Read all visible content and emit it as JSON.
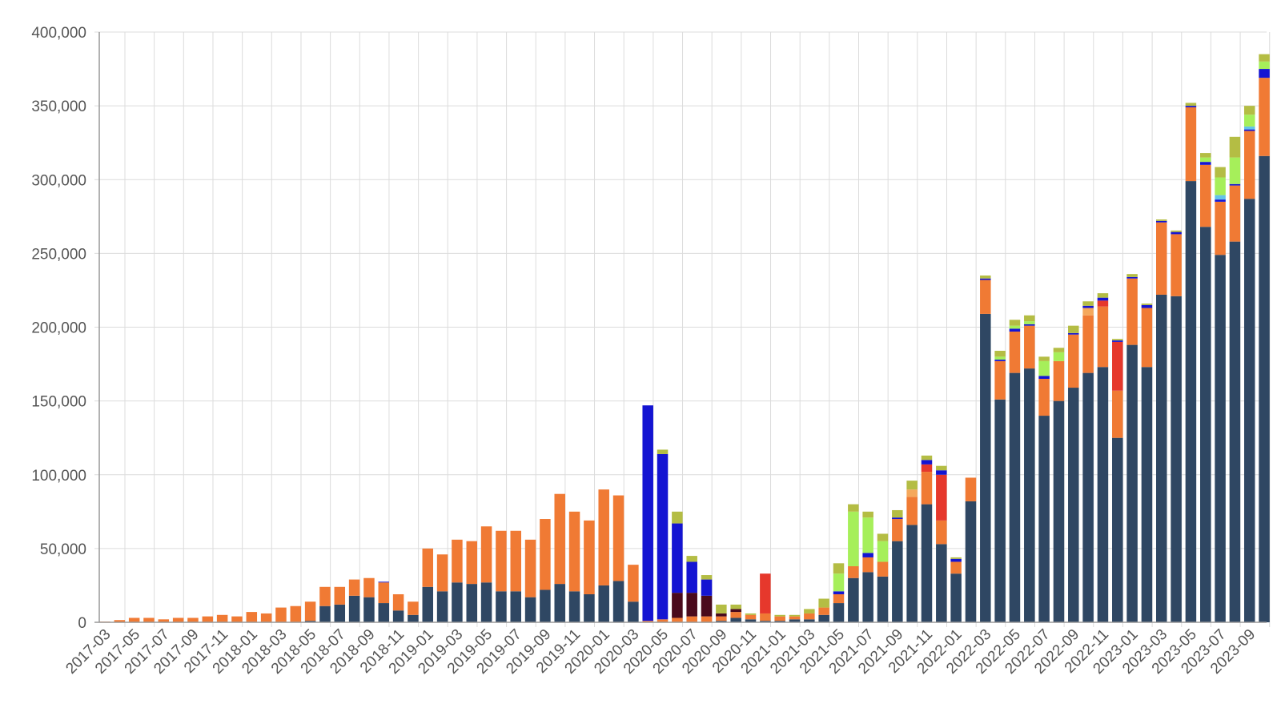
{
  "chart_data": {
    "type": "bar",
    "stacked": true,
    "title": "",
    "xlabel": "",
    "ylabel": "",
    "ylim": [
      0,
      400000
    ],
    "y_ticks": [
      0,
      50000,
      100000,
      150000,
      200000,
      250000,
      300000,
      350000,
      400000
    ],
    "y_tick_labels": [
      "0",
      "50,000",
      "100,000",
      "150,000",
      "200,000",
      "250,000",
      "300,000",
      "350,000",
      "400,000"
    ],
    "grid": true,
    "legend": "none",
    "categories": [
      "2017-03",
      "2017-04",
      "2017-05",
      "2017-06",
      "2017-07",
      "2017-08",
      "2017-09",
      "2017-10",
      "2017-11",
      "2017-12",
      "2018-01",
      "2018-02",
      "2018-03",
      "2018-04",
      "2018-05",
      "2018-06",
      "2018-07",
      "2018-08",
      "2018-09",
      "2018-10",
      "2018-11",
      "2018-12",
      "2019-01",
      "2019-02",
      "2019-03",
      "2019-04",
      "2019-05",
      "2019-06",
      "2019-07",
      "2019-08",
      "2019-09",
      "2019-10",
      "2019-11",
      "2019-12",
      "2020-01",
      "2020-02",
      "2020-03",
      "2020-04",
      "2020-05",
      "2020-06",
      "2020-07",
      "2020-08",
      "2020-09",
      "2020-10",
      "2020-11",
      "2020-12",
      "2021-01",
      "2021-02",
      "2021-03",
      "2021-04",
      "2021-05",
      "2021-06",
      "2021-07",
      "2021-08",
      "2021-09",
      "2021-10",
      "2021-11",
      "2021-12",
      "2022-01",
      "2022-02",
      "2022-03",
      "2022-04",
      "2022-05",
      "2022-06",
      "2022-07",
      "2022-08",
      "2022-09",
      "2022-10",
      "2022-11",
      "2022-12",
      "2023-01",
      "2023-02",
      "2023-03",
      "2023-04",
      "2023-05",
      "2023-06",
      "2023-07",
      "2023-08",
      "2023-09",
      "2023-10"
    ],
    "x_tick_labels": [
      "2017-03",
      "2017-05",
      "2017-07",
      "2017-09",
      "2017-11",
      "2018-01",
      "2018-03",
      "2018-05",
      "2018-07",
      "2018-09",
      "2018-11",
      "2019-01",
      "2019-03",
      "2019-05",
      "2019-07",
      "2019-09",
      "2019-11",
      "2020-01",
      "2020-03",
      "2020-05",
      "2020-07",
      "2020-09",
      "2020-11",
      "2021-01",
      "2021-03",
      "2021-05",
      "2021-07",
      "2021-09",
      "2021-11",
      "2022-01",
      "2022-03",
      "2022-05",
      "2022-07",
      "2022-09",
      "2022-11",
      "2023-01",
      "2023-03",
      "2023-05",
      "2023-07",
      "2023-09"
    ],
    "series": [
      {
        "color": "#2f4763",
        "values": [
          0,
          0,
          0,
          0,
          0,
          0,
          0,
          0,
          0,
          0,
          0,
          0,
          0,
          0,
          1000,
          11000,
          12000,
          18000,
          17000,
          13000,
          8000,
          5000,
          24000,
          21000,
          27000,
          26000,
          27000,
          21000,
          21000,
          17000,
          22000,
          26000,
          21000,
          19000,
          25000,
          28000,
          14000,
          0,
          0,
          0,
          0,
          0,
          1000,
          3000,
          2000,
          1000,
          1000,
          2000,
          2000,
          5000,
          13000,
          30000,
          34000,
          31000,
          55000,
          66000,
          80000,
          53000,
          33000,
          82000,
          209000,
          151000,
          169000,
          172000,
          140000,
          150000,
          159000,
          169000,
          173000,
          125000,
          188000,
          173000,
          222000,
          221000,
          299000,
          268000,
          249000,
          258000,
          287000,
          316000
        ]
      },
      {
        "color": "#f07a34",
        "values": [
          500,
          1500,
          3000,
          3000,
          2000,
          3000,
          3000,
          4000,
          5000,
          4000,
          7000,
          6000,
          10000,
          11000,
          13000,
          13000,
          12000,
          11000,
          13000,
          14000,
          11000,
          9000,
          26000,
          25000,
          29000,
          29000,
          38000,
          41000,
          41000,
          39000,
          48000,
          61000,
          54000,
          50000,
          65000,
          58000,
          25000,
          1000,
          2000,
          3000,
          4000,
          4000,
          3000,
          4000,
          3000,
          5000,
          3000,
          2000,
          4000,
          5000,
          6000,
          8000,
          10000,
          10000,
          15000,
          19000,
          22000,
          16000,
          8000,
          16000,
          23000,
          26000,
          28000,
          29000,
          25000,
          27000,
          36000,
          39000,
          41000,
          32000,
          45000,
          40000,
          49000,
          42000,
          50000,
          42000,
          36000,
          38000,
          46000,
          53000
        ]
      },
      {
        "color": "#f5a85c",
        "values": [
          0,
          0,
          0,
          0,
          0,
          0,
          0,
          0,
          0,
          0,
          0,
          0,
          0,
          0,
          0,
          0,
          0,
          0,
          0,
          0,
          0,
          0,
          0,
          0,
          0,
          0,
          0,
          0,
          0,
          0,
          0,
          0,
          0,
          0,
          0,
          0,
          0,
          0,
          0,
          0,
          0,
          0,
          0,
          0,
          0,
          0,
          0,
          0,
          0,
          0,
          0,
          0,
          0,
          0,
          0,
          5000,
          0,
          0,
          0,
          0,
          0,
          0,
          0,
          0,
          0,
          0,
          0,
          5000,
          0,
          0,
          0,
          0,
          0,
          0,
          0,
          0,
          0,
          0,
          0,
          0
        ]
      },
      {
        "color": "#e6382c",
        "values": [
          0,
          0,
          0,
          0,
          0,
          0,
          0,
          0,
          0,
          0,
          0,
          0,
          0,
          0,
          0,
          0,
          0,
          0,
          0,
          0,
          0,
          0,
          0,
          0,
          0,
          0,
          0,
          0,
          0,
          0,
          0,
          0,
          0,
          0,
          0,
          0,
          0,
          0,
          0,
          0,
          0,
          0,
          0,
          0,
          0,
          27000,
          0,
          0,
          0,
          0,
          0,
          0,
          0,
          0,
          0,
          0,
          5000,
          31000,
          0,
          0,
          0,
          0,
          0,
          0,
          0,
          0,
          0,
          0,
          4000,
          33000,
          0,
          0,
          0,
          0,
          0,
          0,
          0,
          0,
          0,
          0
        ]
      },
      {
        "color": "#4a0a1c",
        "values": [
          0,
          0,
          0,
          0,
          0,
          0,
          0,
          0,
          0,
          0,
          0,
          0,
          0,
          0,
          0,
          0,
          0,
          0,
          0,
          0,
          0,
          0,
          0,
          0,
          0,
          0,
          0,
          0,
          0,
          0,
          0,
          0,
          0,
          0,
          0,
          0,
          0,
          0,
          0,
          17000,
          16000,
          14000,
          2000,
          2000,
          0,
          0,
          0,
          0,
          0,
          0,
          0,
          0,
          0,
          0,
          0,
          0,
          0,
          0,
          0,
          0,
          0,
          0,
          0,
          0,
          0,
          0,
          0,
          0,
          0,
          0,
          0,
          0,
          0,
          0,
          0,
          0,
          0,
          0,
          0,
          0
        ]
      },
      {
        "color": "#1414d2",
        "values": [
          0,
          0,
          0,
          0,
          0,
          0,
          0,
          0,
          0,
          0,
          0,
          0,
          0,
          0,
          0,
          0,
          0,
          0,
          0,
          500,
          0,
          0,
          0,
          0,
          0,
          0,
          0,
          0,
          0,
          0,
          0,
          0,
          0,
          0,
          0,
          0,
          0,
          146000,
          112000,
          47000,
          21000,
          11000,
          0,
          0,
          0,
          0,
          0,
          0,
          0,
          0,
          2000,
          0,
          3000,
          0,
          1000,
          0,
          3000,
          3000,
          2000,
          0,
          1000,
          1000,
          2000,
          1000,
          2000,
          0,
          1000,
          1500,
          2000,
          1000,
          1000,
          2000,
          1000,
          1500,
          1000,
          2000,
          1500,
          1000,
          1000,
          6000
        ]
      },
      {
        "color": "#63c3e8",
        "values": [
          0,
          0,
          0,
          0,
          0,
          0,
          0,
          0,
          0,
          0,
          0,
          0,
          0,
          0,
          0,
          0,
          0,
          0,
          0,
          0,
          0,
          0,
          0,
          0,
          0,
          0,
          0,
          0,
          0,
          0,
          0,
          0,
          0,
          0,
          0,
          0,
          0,
          0,
          0,
          0,
          0,
          0,
          0,
          0,
          0,
          0,
          0,
          0,
          0,
          0,
          0,
          0,
          0,
          0,
          0,
          0,
          0,
          0,
          0,
          0,
          0,
          0,
          0,
          0,
          0,
          0,
          0,
          0,
          0,
          0,
          0,
          0,
          0,
          0,
          0,
          0,
          3000,
          0,
          2000,
          0
        ]
      },
      {
        "color": "#a6ef5a",
        "values": [
          0,
          0,
          0,
          0,
          0,
          0,
          0,
          0,
          0,
          0,
          0,
          0,
          0,
          0,
          0,
          0,
          0,
          0,
          0,
          0,
          0,
          0,
          0,
          0,
          0,
          0,
          0,
          0,
          0,
          0,
          0,
          0,
          0,
          0,
          0,
          0,
          0,
          0,
          0,
          0,
          0,
          0,
          0,
          0,
          0,
          0,
          0,
          0,
          0,
          0,
          12000,
          37000,
          24000,
          14000,
          0,
          0,
          0,
          0,
          0,
          0,
          0,
          2000,
          2000,
          2000,
          10000,
          6000,
          0,
          0,
          0,
          0,
          0,
          0,
          0,
          0,
          0,
          3000,
          12000,
          18000,
          8000,
          5000
        ]
      },
      {
        "color": "#b4bd44",
        "values": [
          0,
          0,
          0,
          0,
          0,
          0,
          0,
          0,
          0,
          0,
          0,
          0,
          0,
          0,
          0,
          0,
          0,
          0,
          0,
          0,
          0,
          0,
          0,
          0,
          0,
          0,
          0,
          0,
          0,
          0,
          0,
          0,
          0,
          0,
          0,
          0,
          0,
          0,
          3000,
          8000,
          4000,
          3000,
          6000,
          3000,
          1000,
          0,
          1000,
          1000,
          3000,
          6000,
          7000,
          5000,
          4000,
          5000,
          5000,
          6000,
          3000,
          3000,
          1000,
          0,
          2000,
          4000,
          4000,
          4000,
          3000,
          3000,
          5000,
          3000,
          3000,
          1000,
          2000,
          1000,
          1000,
          1000,
          2000,
          3000,
          7000,
          14000,
          6000,
          5000
        ]
      }
    ]
  }
}
